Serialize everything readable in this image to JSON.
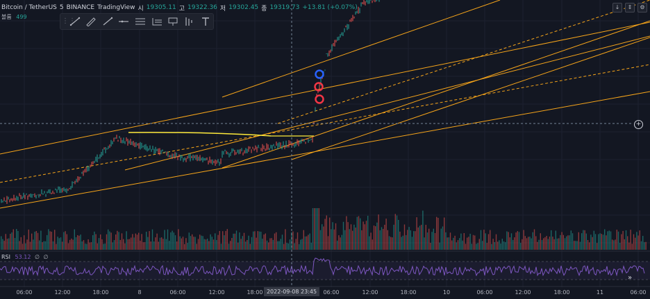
{
  "header": {
    "pair": "Bitcoin / TetherUS",
    "interval": "5",
    "exchange": "BINANCE",
    "source": "TradingView",
    "open_label": "시",
    "open": "19305.11",
    "high_label": "고",
    "high": "19322.36",
    "low_label": "저",
    "low": "19302.45",
    "close_label": "종",
    "close": "19319.73",
    "change": "+13.81 (+0.07%)"
  },
  "volume": {
    "label": "볼륨",
    "value": "499"
  },
  "rsi": {
    "label": "RSI",
    "value": "53.12",
    "extra1": "∅",
    "extra2": "∅"
  },
  "time_axis": {
    "ticks": [
      "06:00",
      "12:00",
      "18:00",
      "8",
      "06:00",
      "12:00",
      "18:00",
      "06:00",
      "12:00",
      "18:00",
      "10",
      "06:00",
      "12:00",
      "18:00",
      "11",
      "06:00"
    ],
    "crosshair_label": "2022-09-08   23:45"
  },
  "toolbar": {
    "icons": [
      "drag-handle-icon",
      "brush-icon",
      "pencil-icon",
      "trend-line-icon",
      "horizontal-ray-icon",
      "parallel-channel-icon",
      "fib-channel-icon",
      "callout-icon",
      "long-position-icon",
      "text-icon"
    ]
  },
  "top_right": {
    "down_icon": "↓",
    "log_icon": "⇕",
    "settings_icon": "⚙"
  },
  "colors": {
    "background": "#131722",
    "up": "#26a69a",
    "down": "#ef5350",
    "trendline": "#f7a51a",
    "yellow_line": "#ffeb3b",
    "rsi": "#7e57c2",
    "blue_circle": "#2962ff",
    "red_circle": "#f23645"
  },
  "chart_data": {
    "type": "candlestick",
    "price_series_shape": [
      19305.11,
      19322.36,
      19302.45,
      19319.73
    ],
    "annotations": [
      "blue circle",
      "red circle",
      "red circle",
      "trend lines",
      "dashed parallel lines",
      "yellow horizontal segment"
    ],
    "rsi_series": "oscillates between 30 and 70 with spike near 2022-09-08 23:45"
  }
}
